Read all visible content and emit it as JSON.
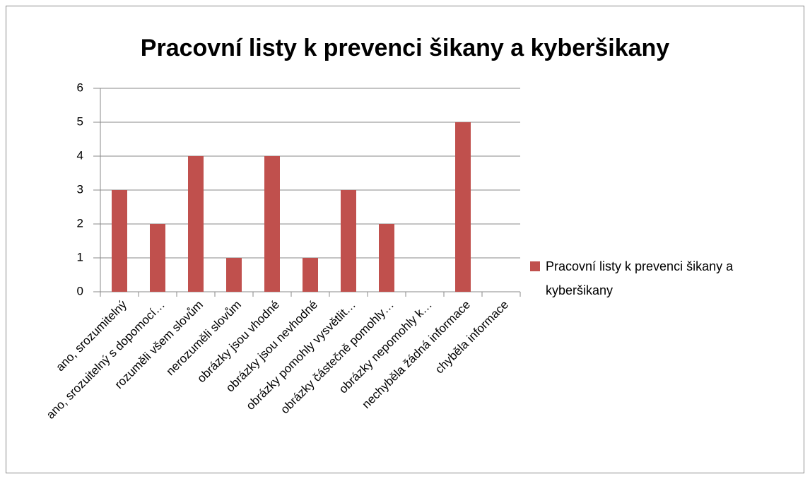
{
  "chart_data": {
    "type": "bar",
    "title": "Pracovní listy k prevenci šikany a kyberšikany",
    "categories": [
      "ano, srozumitelný",
      "ano, srozuitelný s dopomocí…",
      "rozuměli všem slovům",
      "nerozuměli slovům",
      "obrázky jsou vhodné",
      "obrázky jsou nevhodné",
      "obrázky pomohly vysvětlit…",
      "obrázky částečně pomohly…",
      "obrázky nepomohly k…",
      "nechyběla žádná informace",
      "chyběla informace"
    ],
    "series": [
      {
        "name": "Pracovní listy k prevenci šikany a kyberšikany",
        "color": "#c0504d",
        "values": [
          3,
          2,
          4,
          1,
          4,
          1,
          3,
          2,
          0,
          5,
          0
        ]
      }
    ],
    "ylim": [
      0,
      6
    ],
    "yticks": [
      0,
      1,
      2,
      3,
      4,
      5,
      6
    ],
    "grid": true,
    "legend": "right"
  }
}
